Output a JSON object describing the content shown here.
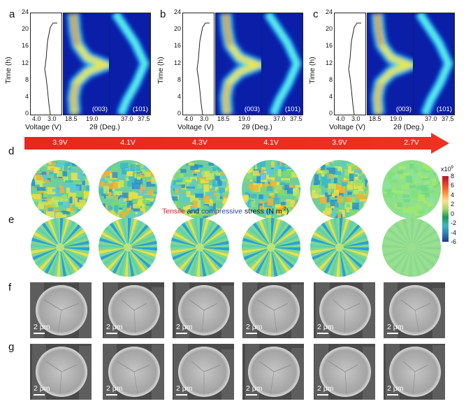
{
  "panels": {
    "a": "a",
    "b": "b",
    "c": "c",
    "d": "d",
    "e": "e",
    "f": "f",
    "g": "g"
  },
  "xrd": {
    "y_label": "Time (h)",
    "y_ticks": [
      "24",
      "20",
      "16",
      "12",
      "8",
      "4",
      "0"
    ],
    "voltage_label": "Voltage (V)",
    "voltage_ticks": [
      "4.0",
      "3.0"
    ],
    "theta_label": "2θ (Deg.)",
    "theta_ticks": [
      "18.5",
      "19.0",
      "37.0",
      "37.5"
    ],
    "peak_003": "(003)",
    "peak_101": "(101)"
  },
  "arrow": {
    "color": "#e8281c",
    "voltages": [
      "3.9V",
      "4.1V",
      "4.3V",
      "4.1V",
      "3.9V",
      "2.7V"
    ]
  },
  "stress": {
    "caption_tensile": "Tensile",
    "caption_and": " and ",
    "caption_compressive": "compressive",
    "caption_rest": " stress (N m",
    "caption_sup": "-2",
    "caption_end": ")",
    "tensile_color": "#d7191c",
    "compressive_color": "#2b3fb0",
    "colorbar_scale": "x10",
    "colorbar_exp": "9",
    "colorbar_ticks": [
      "8",
      "6",
      "4",
      "2",
      "0",
      "-2",
      "-4",
      "-6"
    ]
  },
  "sem": {
    "scale_label": "2 μm"
  }
}
